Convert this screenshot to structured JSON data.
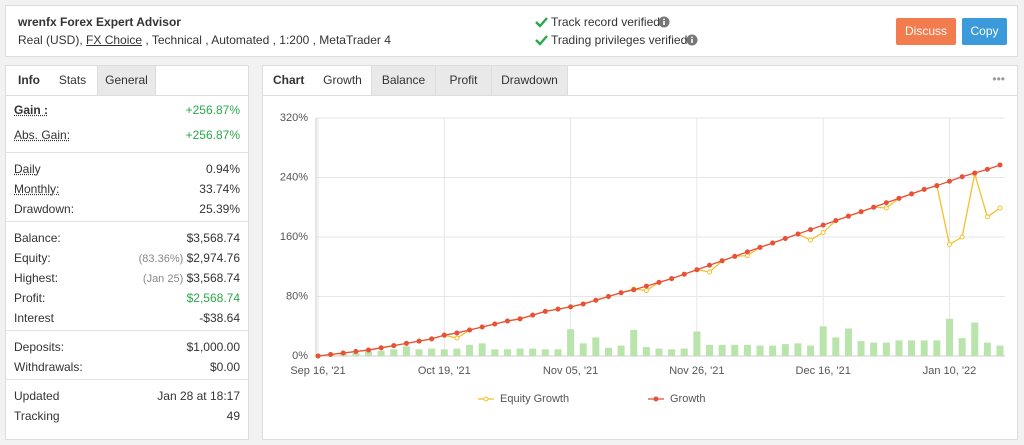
{
  "header": {
    "title": "wrenfx Forex Expert Advisor",
    "account": "Real (USD),",
    "broker": "FX Choice",
    "details": ", Technical , Automated , 1:200 , MetaTrader 4",
    "verifications": [
      "Track record verified",
      "Trading privileges verified"
    ],
    "buttons": [
      "Discuss",
      "Copy"
    ]
  },
  "stats_panel": {
    "label": "Info",
    "tabs": [
      "Stats",
      "General"
    ],
    "active_tab": 0,
    "groups": [
      [
        {
          "label": "Gain :",
          "value": "+256.87%",
          "underline": true,
          "bold": true,
          "color": "#2aa84a"
        },
        {
          "label": "Abs. Gain:",
          "value": "+256.87%",
          "underline": true,
          "color": "#2aa84a"
        }
      ],
      [
        {
          "label": "Daily",
          "value": "0.94%",
          "underline": true
        },
        {
          "label": "Monthly:",
          "value": "33.74%",
          "underline": true
        },
        {
          "label": "Drawdown:",
          "value": "25.39%"
        }
      ],
      [
        {
          "label": "Balance:",
          "value": "$3,568.74"
        },
        {
          "label": "Equity:",
          "note": "(83.36%)",
          "value": "$2,974.76"
        },
        {
          "label": "Highest:",
          "note": "(Jan 25)",
          "value": "$3,568.74"
        },
        {
          "label": "Profit:",
          "value": "$2,568.74",
          "color": "#2aa84a"
        },
        {
          "label": "Interest",
          "value": "-$38.64"
        }
      ],
      [
        {
          "label": "Deposits:",
          "value": "$1,000.00"
        },
        {
          "label": "Withdrawals:",
          "value": "$0.00"
        }
      ],
      [
        {
          "label": "Updated",
          "value": "Jan 28 at 18:17"
        },
        {
          "label": "Tracking",
          "value": "49"
        }
      ]
    ]
  },
  "chart_panel": {
    "label": "Chart",
    "tabs": [
      "Growth",
      "Balance",
      "Profit",
      "Drawdown"
    ],
    "active_tab": 0,
    "menu": "•••"
  },
  "chart_data": {
    "type": "line",
    "categories": [
      "Sep 16, '21",
      null,
      null,
      null,
      null,
      null,
      null,
      null,
      null,
      null,
      "Oct 19, '21",
      null,
      null,
      null,
      null,
      null,
      null,
      null,
      null,
      null,
      "Nov 05, '21",
      null,
      null,
      null,
      null,
      null,
      null,
      null,
      null,
      null,
      "Nov 26, '21",
      null,
      null,
      null,
      null,
      null,
      null,
      null,
      null,
      null,
      "Dec 16, '21",
      null,
      null,
      null,
      null,
      null,
      null,
      null,
      null,
      null,
      "Jan 10, '22",
      null,
      null,
      null,
      null
    ],
    "series": [
      {
        "name": "Equity Growth",
        "color": "#f5c02c",
        "values": [
          0,
          2,
          4,
          6,
          8,
          11,
          14,
          17,
          20,
          23,
          28,
          24,
          35,
          39,
          43,
          47,
          50,
          55,
          60,
          63,
          66,
          70,
          75,
          80,
          85,
          90,
          88,
          99,
          104,
          110,
          116,
          113,
          128,
          134,
          135,
          146,
          152,
          158,
          164,
          156,
          166,
          182,
          188,
          194,
          200,
          199,
          212,
          218,
          224,
          229,
          150,
          160,
          245,
          187,
          199
        ]
      },
      {
        "name": "Growth",
        "color": "#e8503a",
        "values": [
          0,
          2,
          4,
          6,
          8,
          11,
          14,
          17,
          20,
          23,
          28,
          31,
          35,
          39,
          43,
          47,
          50,
          55,
          60,
          63,
          66,
          70,
          75,
          80,
          85,
          89,
          94,
          99,
          104,
          110,
          116,
          122,
          128,
          134,
          140,
          146,
          152,
          158,
          164,
          170,
          176,
          182,
          188,
          194,
          200,
          206,
          212,
          218,
          224,
          229,
          235,
          241,
          246,
          251,
          256.87
        ]
      }
    ],
    "bars": {
      "color": "#b9e4ab",
      "values": [
        1,
        2,
        3,
        4,
        6,
        7,
        9,
        13,
        9,
        10,
        9,
        10,
        15,
        17,
        9,
        9,
        10,
        10,
        9,
        9,
        36,
        17,
        25,
        11,
        14,
        35,
        12,
        10,
        9,
        10,
        33,
        15,
        15,
        15,
        15,
        14,
        14,
        16,
        17,
        14,
        40,
        25,
        37,
        20,
        18,
        18,
        21,
        21,
        21,
        21,
        50,
        24,
        45,
        18,
        14
      ]
    },
    "ylim": [
      0,
      320
    ],
    "yticks": [
      {
        "value": 0,
        "label": "0%"
      },
      {
        "value": 80,
        "label": "80%"
      },
      {
        "value": 160,
        "label": "160%"
      },
      {
        "value": 240,
        "label": "240%"
      },
      {
        "value": 320,
        "label": "320%"
      }
    ],
    "grid": true,
    "legend": "bottom"
  }
}
